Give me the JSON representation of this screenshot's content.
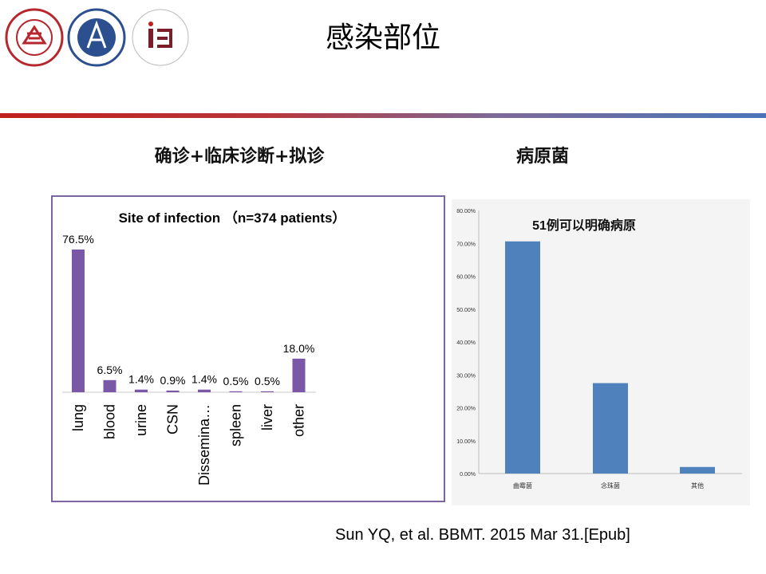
{
  "header": {
    "title": "感染部位",
    "logos": [
      {
        "name": "peking-university-logo",
        "text": "PEKING UNIVERSITY 1898",
        "color": "#b7282e"
      },
      {
        "name": "peking-university-peoples-hospital-logo",
        "text": "北京大学人民医院 PEKING UNIVERSITY PEOPLE'S HOSPITAL",
        "color": "#2b4f8f"
      },
      {
        "name": "institute-of-hematology-logo",
        "text": "INSTITUTE OF HEMATOLOGY PEKING UNIVERSITY",
        "color": "#7a1e2a"
      }
    ]
  },
  "left_section": {
    "subtitle": "确诊+临床诊断+拟诊"
  },
  "right_section": {
    "subtitle": "病原菌"
  },
  "citation": "Sun YQ, et al. BBMT. 2015 Mar 31.[Epub]",
  "colors": {
    "left_bar": "#7b57a8",
    "right_bar": "#4f81bd",
    "box_border": "#7b64a0"
  },
  "chart_data": [
    {
      "type": "bar",
      "title": "Site of infection （n=374 patients）",
      "categories": [
        "lung",
        "blood",
        "urine",
        "CSN",
        "Dissemina…",
        "spleen",
        "liver",
        "other"
      ],
      "values": [
        76.5,
        6.5,
        1.4,
        0.9,
        1.4,
        0.5,
        0.5,
        18.0
      ],
      "data_labels": [
        "76.5%",
        "6.5%",
        "1.4%",
        "0.9%",
        "1.4%",
        "0.5%",
        "0.5%",
        "18.0%"
      ],
      "ylim": [
        0,
        80
      ],
      "grid": false
    },
    {
      "type": "bar",
      "title": "51例可以明确病原",
      "categories": [
        "曲霉菌",
        "念珠菌",
        "其他"
      ],
      "values": [
        70.6,
        27.5,
        2.0
      ],
      "yticks": [
        "0.00%",
        "10.00%",
        "20.00%",
        "30.00%",
        "40.00%",
        "50.00%",
        "60.00%",
        "70.00%",
        "80.00%"
      ],
      "ylim": [
        0,
        80
      ],
      "grid": false
    }
  ]
}
